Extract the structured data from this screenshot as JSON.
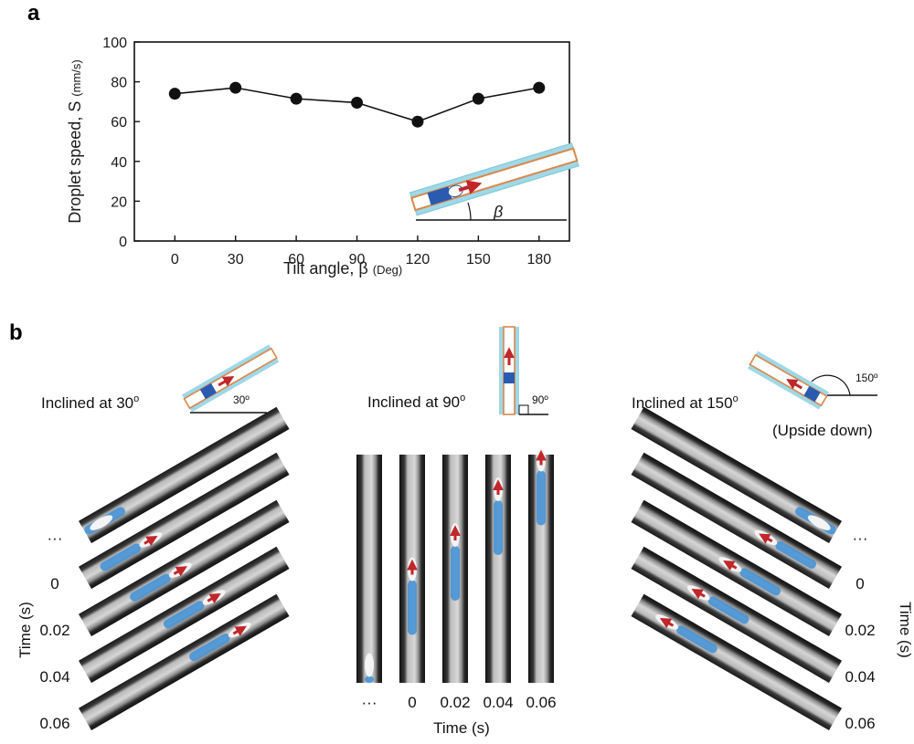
{
  "figure": {
    "panel_a_label": "a",
    "panel_b_label": "b"
  },
  "chart_data": {
    "type": "line",
    "x": [
      0,
      30,
      60,
      90,
      120,
      150,
      180
    ],
    "series": [
      {
        "values": [
          74,
          77,
          71.5,
          69.5,
          60,
          71.5,
          77
        ]
      }
    ],
    "xlabel": "Tilt angle, β",
    "xlabel_unit": "(Deg)",
    "ylabel": "Droplet speed, S",
    "ylabel_unit": "(mm/s)",
    "xticks": [
      "0",
      "30",
      "60",
      "90",
      "120",
      "150",
      "180"
    ],
    "yticks": [
      "0",
      "20",
      "40",
      "60",
      "80",
      "100"
    ],
    "ylim": [
      0,
      100
    ],
    "xlim": [
      -20,
      195
    ],
    "grid": false,
    "inset_symbol": "β"
  },
  "panel_b": {
    "left": {
      "title": "Inclined at 30",
      "sup": "o",
      "angle_label": "30º",
      "times": [
        "···",
        "0",
        "0.02",
        "0.04",
        "0.06"
      ],
      "axis_label": "Time (s)"
    },
    "middle": {
      "title": "Inclined at 90",
      "sup": "o",
      "angle_label": "90º",
      "times": [
        "···",
        "0",
        "0.02",
        "0.04",
        "0.06"
      ],
      "axis_label": "Time (s)"
    },
    "right": {
      "title": "Inclined at 150",
      "sup": "o",
      "subtitle": "(Upside down)",
      "angle_label": "150º",
      "times": [
        "···",
        "0",
        "0.02",
        "0.04",
        "0.06"
      ],
      "axis_label": "Time (s)"
    }
  },
  "colors": {
    "tube_outer": "#8fd3e4",
    "tube_wall": "#d9874a",
    "droplet": "#2b5bb0",
    "arrow": "#c0262a",
    "frame_dark": "#1c1c1c",
    "liquid": "#3f8fd6"
  }
}
